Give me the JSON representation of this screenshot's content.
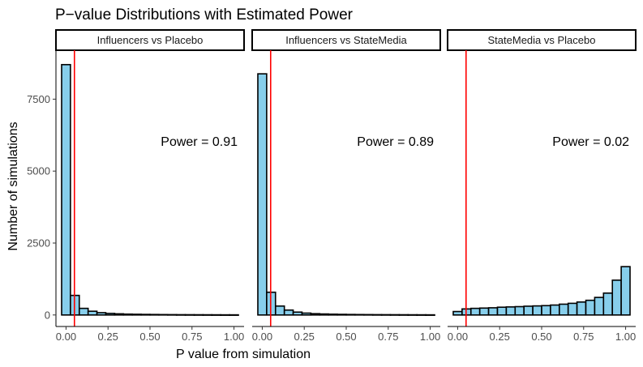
{
  "chart_data": {
    "type": "bar",
    "title": "P−value Distributions with Estimated Power",
    "xlabel": "P value from simulation",
    "ylabel": "Number of simulations",
    "xlim": [
      -0.06,
      1.06
    ],
    "ylim": [
      -400,
      9200
    ],
    "x_ticks": [
      0.0,
      0.25,
      0.5,
      0.75,
      1.0
    ],
    "x_tick_labels": [
      "0.00",
      "0.25",
      "0.50",
      "0.75",
      "1.00"
    ],
    "y_ticks": [
      0,
      2500,
      5000,
      7500
    ],
    "y_tick_labels": [
      "0",
      "2500",
      "5000",
      "7500"
    ],
    "bin_centers": [
      0.0,
      0.0526,
      0.1053,
      0.1579,
      0.2105,
      0.2632,
      0.3158,
      0.3684,
      0.4211,
      0.4737,
      0.5263,
      0.5789,
      0.6316,
      0.6842,
      0.7368,
      0.7895,
      0.8421,
      0.8947,
      0.9474,
      1.0
    ],
    "bin_width": 0.0526,
    "reference_line_x": 0.05,
    "reference_line_color": "#ff0000",
    "bar_color": "#87ceeb",
    "panels": [
      {
        "strip_label": "Influencers vs Placebo",
        "power_label": "Power = 0.91",
        "counts": [
          8700,
          680,
          230,
          130,
          80,
          55,
          40,
          30,
          25,
          20,
          17,
          14,
          12,
          10,
          9,
          8,
          7,
          6,
          5,
          5
        ]
      },
      {
        "strip_label": "Influencers vs StateMedia",
        "power_label": "Power = 0.89",
        "counts": [
          8380,
          790,
          310,
          170,
          100,
          65,
          45,
          35,
          28,
          22,
          18,
          15,
          13,
          11,
          10,
          9,
          8,
          7,
          6,
          5
        ]
      },
      {
        "strip_label": "StateMedia vs Placebo",
        "power_label": "Power = 0.02",
        "counts": [
          120,
          210,
          230,
          240,
          250,
          270,
          280,
          290,
          305,
          315,
          325,
          345,
          375,
          405,
          450,
          510,
          610,
          760,
          1210,
          1680
        ]
      }
    ]
  }
}
